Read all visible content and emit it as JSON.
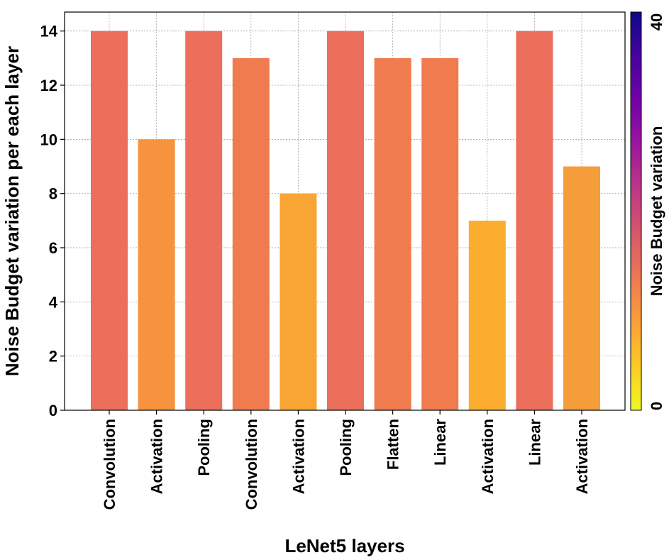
{
  "chart_data": {
    "type": "bar",
    "title": "",
    "xlabel": "LeNet5 layers",
    "ylabel": "Noise Budget variation per each layer",
    "categories": [
      "Convolution",
      "Activation",
      "Pooling",
      "Convolution",
      "Activation",
      "Pooling",
      "Flatten",
      "Linear",
      "Activation",
      "Linear",
      "Activation"
    ],
    "values": [
      14,
      10,
      14,
      13,
      8,
      14,
      13,
      13,
      7,
      14,
      9
    ],
    "ylim": [
      0,
      14.7
    ],
    "yticks": [
      0,
      2,
      4,
      6,
      8,
      10,
      12,
      14
    ],
    "grid": true,
    "colorbar": {
      "label": "Noise Budget variation",
      "min": 0,
      "max": 40,
      "tick_labels": [
        "0",
        "40"
      ],
      "colormap": "plasma_r"
    },
    "bar_colors": [
      "#ec6f5c",
      "#f7923f",
      "#ec6f5c",
      "#ef7b4f",
      "#f9a534",
      "#ec6f5c",
      "#ef7b4f",
      "#ef7b4f",
      "#fbad2f",
      "#ec6f5c",
      "#f59d39"
    ],
    "colorbar_gradient": [
      "#f0f921",
      "#fdca26",
      "#fb9f3a",
      "#ed7953",
      "#d8576b",
      "#bd3786",
      "#9c179e",
      "#7201a8",
      "#46039f",
      "#0d0887"
    ]
  }
}
